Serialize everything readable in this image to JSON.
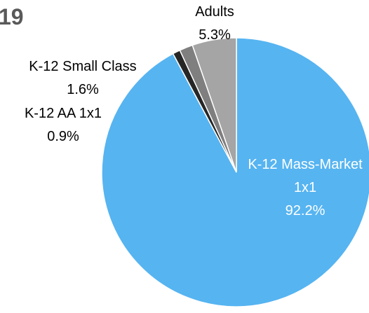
{
  "chart_data": {
    "type": "pie",
    "title": "19",
    "categories": [
      "K-12 Mass-Market 1x1",
      "K-12 AA 1x1",
      "K-12 Small Class",
      "Adults"
    ],
    "values": [
      92.2,
      0.9,
      1.6,
      5.3
    ],
    "value_labels": [
      "92.2%",
      "0.9%",
      "1.6%",
      "5.3%"
    ],
    "colors": [
      "#56b4f1",
      "#262626",
      "#7f7f7f",
      "#a5a5a5"
    ]
  }
}
